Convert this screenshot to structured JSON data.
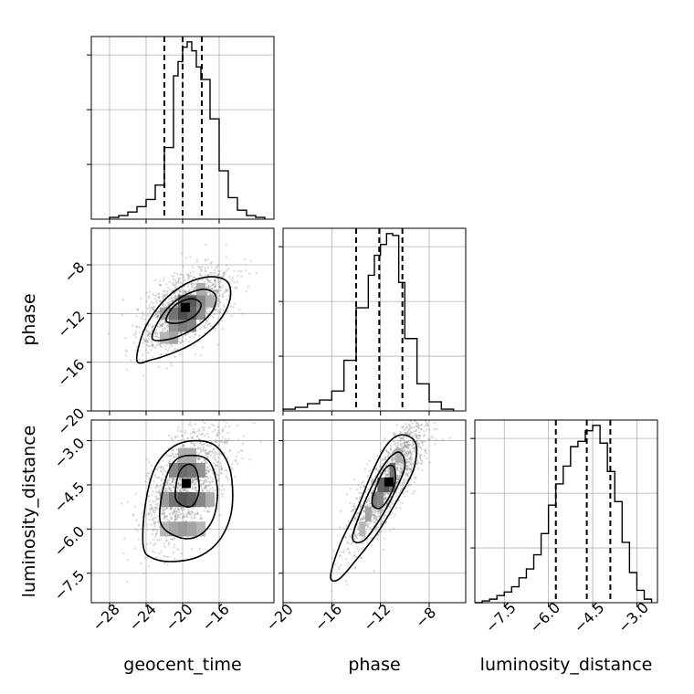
{
  "chart_data": {
    "type": "corner",
    "parameters": [
      "geocent_time",
      "phase",
      "luminosity_distance"
    ],
    "axis_labels": {
      "geocent_time": "geocent_time",
      "phase": "phase",
      "luminosity_distance": "luminosity_distance"
    },
    "ranges": {
      "geocent_time": [
        -30,
        -10
      ],
      "phase": [
        -20,
        -5
      ],
      "luminosity_distance": [
        -8.5,
        -2.3
      ]
    },
    "ticks": {
      "geocent_time": [
        -28,
        -24,
        -20,
        -16
      ],
      "phase": [
        -20,
        -16,
        -12,
        -8
      ],
      "luminosity_distance": [
        -7.5,
        -6.0,
        -4.5,
        -3.0
      ]
    },
    "tick_labels": {
      "geocent_time": [
        "−28",
        "−24",
        "−20",
        "−16"
      ],
      "phase": [
        "−20",
        "−16",
        "−12",
        "−8"
      ],
      "luminosity_distance": [
        "−7.5",
        "−6.0",
        "−4.5",
        "−3.0"
      ]
    },
    "quantiles": {
      "geocent_time": [
        -22.0,
        -20.0,
        -17.9
      ],
      "phase": [
        -14.0,
        -12.1,
        -10.2
      ],
      "luminosity_distance": [
        -5.75,
        -4.7,
        -3.9
      ]
    },
    "histograms": {
      "geocent_time": {
        "edges": [
          -28,
          -27,
          -26,
          -25,
          -24,
          -23,
          -22,
          -21,
          -20.5,
          -20,
          -19.5,
          -19,
          -18.5,
          -18,
          -17,
          -16,
          -15,
          -14,
          -13,
          -12,
          -11
        ],
        "counts": [
          1,
          2,
          4,
          7,
          11,
          19,
          40,
          80,
          88,
          96,
          99,
          94,
          85,
          78,
          56,
          27,
          12,
          5,
          2,
          1
        ]
      },
      "phase": {
        "edges": [
          -20,
          -19,
          -18,
          -17,
          -16,
          -15,
          -14,
          -13,
          -12.5,
          -12,
          -11.5,
          -11,
          -10.5,
          -10,
          -9,
          -8,
          -7,
          -6
        ],
        "counts": [
          1,
          2,
          4,
          6,
          11,
          28,
          57,
          75,
          86,
          92,
          98,
          97,
          71,
          40,
          15,
          5,
          1
        ]
      },
      "luminosity_distance": {
        "edges": [
          -8.5,
          -8.25,
          -8.0,
          -7.75,
          -7.5,
          -7.25,
          -7.0,
          -6.75,
          -6.5,
          -6.25,
          -6.0,
          -5.75,
          -5.5,
          -5.25,
          -5.0,
          -4.75,
          -4.5,
          -4.25,
          -4.0,
          -3.75,
          -3.5,
          -3.25,
          -3.0,
          -2.75,
          -2.5
        ],
        "counts": [
          0,
          1,
          2,
          4,
          6,
          9,
          14,
          19,
          27,
          39,
          55,
          67,
          77,
          88,
          91,
          97,
          100,
          90,
          74,
          57,
          34,
          17,
          7,
          2
        ]
      }
    },
    "pairs": [
      {
        "x": "geocent_time",
        "y": "phase",
        "center": [
          -19.7,
          -11.5
        ],
        "contours": [
          [
            [
              -25.0,
              -15.9
            ],
            [
              -24.3,
              -13.5
            ],
            [
              -22.6,
              -11.4
            ],
            [
              -20.6,
              -10.0
            ],
            [
              -18.5,
              -9.2
            ],
            [
              -16.4,
              -9.0
            ],
            [
              -15.0,
              -9.5
            ],
            [
              -14.8,
              -10.8
            ],
            [
              -15.7,
              -12.3
            ],
            [
              -17.3,
              -13.6
            ],
            [
              -19.2,
              -14.6
            ],
            [
              -21.3,
              -15.3
            ],
            [
              -23.4,
              -15.8
            ]
          ],
          [
            [
              -23.3,
              -14.1
            ],
            [
              -22.7,
              -12.7
            ],
            [
              -21.3,
              -11.3
            ],
            [
              -19.5,
              -10.4
            ],
            [
              -17.6,
              -10.0
            ],
            [
              -16.4,
              -10.5
            ],
            [
              -16.6,
              -11.6
            ],
            [
              -17.7,
              -12.6
            ],
            [
              -19.4,
              -13.5
            ],
            [
              -21.4,
              -14.1
            ]
          ],
          [
            [
              -21.8,
              -12.6
            ],
            [
              -21.2,
              -11.6
            ],
            [
              -20.1,
              -11.0
            ],
            [
              -18.8,
              -10.8
            ],
            [
              -18.0,
              -11.2
            ],
            [
              -18.3,
              -11.9
            ],
            [
              -19.3,
              -12.5
            ],
            [
              -20.6,
              -12.8
            ]
          ]
        ],
        "density_cells": [
          [
            -22,
            -14,
            0.25
          ],
          [
            -21,
            -14,
            0.35
          ],
          [
            -20,
            -13,
            0.55
          ],
          [
            -19,
            -13,
            0.5
          ],
          [
            -21,
            -13,
            0.45
          ],
          [
            -22,
            -12,
            0.35
          ],
          [
            -21,
            -12,
            0.6
          ],
          [
            -20,
            -12,
            0.8
          ],
          [
            -19,
            -12,
            0.7
          ],
          [
            -18,
            -12,
            0.45
          ],
          [
            -20,
            -11,
            0.7
          ],
          [
            -19,
            -11,
            0.75
          ],
          [
            -18,
            -11,
            0.5
          ],
          [
            -17,
            -11,
            0.3
          ],
          [
            -18,
            -10,
            0.3
          ]
        ]
      },
      {
        "x": "geocent_time",
        "y": "luminosity_distance",
        "center": [
          -19.6,
          -4.45
        ],
        "contours": [
          [
            [
              -24.3,
              -6.6
            ],
            [
              -24.1,
              -5.2
            ],
            [
              -23.0,
              -3.9
            ],
            [
              -21.0,
              -3.2
            ],
            [
              -18.5,
              -3.0
            ],
            [
              -16.3,
              -3.2
            ],
            [
              -14.8,
              -4.0
            ],
            [
              -14.6,
              -5.3
            ],
            [
              -15.8,
              -6.3
            ],
            [
              -18.0,
              -6.9
            ],
            [
              -20.8,
              -7.1
            ],
            [
              -23.2,
              -7.0
            ]
          ],
          [
            [
              -22.4,
              -5.8
            ],
            [
              -22.1,
              -4.6
            ],
            [
              -20.9,
              -3.7
            ],
            [
              -19.0,
              -3.5
            ],
            [
              -17.1,
              -3.7
            ],
            [
              -16.2,
              -4.6
            ],
            [
              -16.6,
              -5.6
            ],
            [
              -18.1,
              -6.2
            ],
            [
              -20.2,
              -6.3
            ]
          ],
          [
            [
              -20.8,
              -4.9
            ],
            [
              -20.4,
              -4.1
            ],
            [
              -19.4,
              -3.8
            ],
            [
              -18.5,
              -4.0
            ],
            [
              -18.2,
              -4.7
            ],
            [
              -18.9,
              -5.2
            ],
            [
              -20.0,
              -5.2
            ]
          ]
        ],
        "density_cells": [
          [
            -22,
            -6,
            0.25
          ],
          [
            -21,
            -6,
            0.35
          ],
          [
            -20,
            -6,
            0.4
          ],
          [
            -19,
            -6,
            0.35
          ],
          [
            -18,
            -6,
            0.25
          ],
          [
            -22,
            -5,
            0.4
          ],
          [
            -21,
            -5,
            0.6
          ],
          [
            -20,
            -5,
            0.75
          ],
          [
            -19,
            -5,
            0.7
          ],
          [
            -18,
            -5,
            0.5
          ],
          [
            -17,
            -5,
            0.3
          ],
          [
            -21,
            -4,
            0.5
          ],
          [
            -20,
            -4,
            0.65
          ],
          [
            -19,
            -4,
            0.6
          ],
          [
            -18,
            -4,
            0.45
          ],
          [
            -20,
            -3.5,
            0.3
          ],
          [
            -19,
            -3.5,
            0.3
          ]
        ]
      },
      {
        "x": "phase",
        "y": "luminosity_distance",
        "center": [
          -11.3,
          -4.4
        ],
        "contours": [
          [
            [
              -16.1,
              -7.6
            ],
            [
              -15.3,
              -6.5
            ],
            [
              -13.9,
              -5.3
            ],
            [
              -12.6,
              -4.0
            ],
            [
              -11.4,
              -3.1
            ],
            [
              -10.2,
              -2.8
            ],
            [
              -9.1,
              -3.1
            ],
            [
              -9.3,
              -4.0
            ],
            [
              -10.6,
              -5.0
            ],
            [
              -12.2,
              -6.1
            ],
            [
              -13.9,
              -7.0
            ],
            [
              -15.4,
              -7.7
            ]
          ],
          [
            [
              -14.3,
              -6.3
            ],
            [
              -13.5,
              -5.3
            ],
            [
              -12.4,
              -4.3
            ],
            [
              -11.3,
              -3.6
            ],
            [
              -10.4,
              -3.4
            ],
            [
              -10.0,
              -3.9
            ],
            [
              -10.9,
              -4.8
            ],
            [
              -12.1,
              -5.7
            ],
            [
              -13.4,
              -6.4
            ]
          ],
          [
            [
              -12.7,
              -5.1
            ],
            [
              -12.2,
              -4.4
            ],
            [
              -11.5,
              -3.9
            ],
            [
              -10.9,
              -3.9
            ],
            [
              -10.8,
              -4.4
            ],
            [
              -11.4,
              -5.0
            ],
            [
              -12.1,
              -5.3
            ]
          ]
        ],
        "density_cells": [
          [
            -13,
            -5.5,
            0.35
          ],
          [
            -12.5,
            -5.0,
            0.55
          ],
          [
            -12,
            -4.5,
            0.7
          ],
          [
            -11.5,
            -4.5,
            0.75
          ],
          [
            -11,
            -4.0,
            0.6
          ],
          [
            -12,
            -5.0,
            0.5
          ],
          [
            -11,
            -4.5,
            0.55
          ],
          [
            -10.5,
            -3.5,
            0.3
          ],
          [
            -13.5,
            -6.0,
            0.25
          ]
        ]
      }
    ]
  }
}
